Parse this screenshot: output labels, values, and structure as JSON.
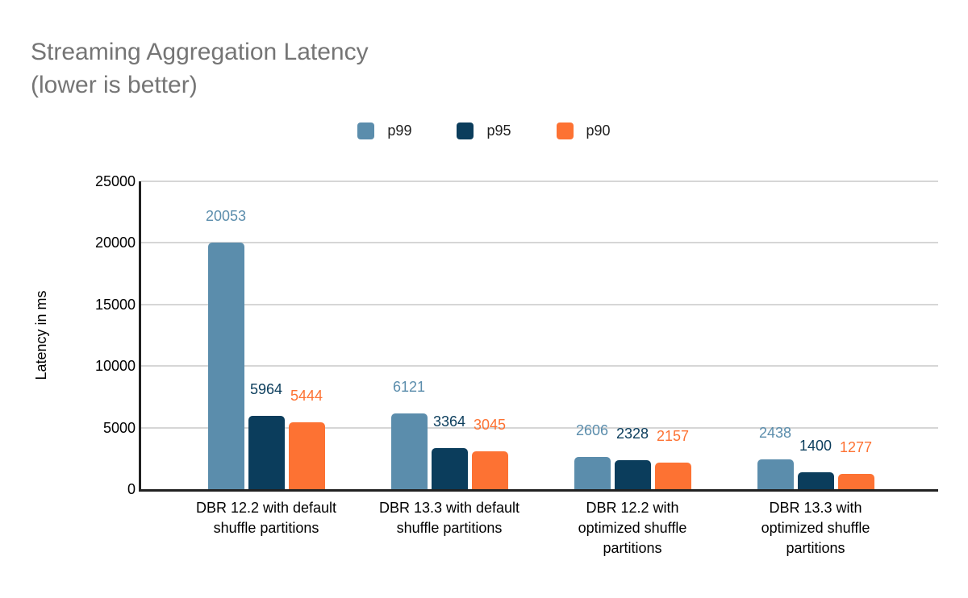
{
  "title": {
    "line1": "Streaming Aggregation Latency",
    "line2": "(lower is better)"
  },
  "colors": {
    "title_text": "#757575",
    "axis": "#212121",
    "gridline": "#d6d6d6",
    "tick_text": "#000000",
    "p99": "#5b8dac",
    "p95": "#0b3d5c",
    "p90": "#fd7233"
  },
  "chart_data": {
    "type": "bar",
    "title": "Streaming Aggregation Latency (lower is better)",
    "xlabel": "",
    "ylabel": "Latency in ms",
    "ylim": [
      0,
      25000
    ],
    "yticks": [
      0,
      5000,
      10000,
      15000,
      20000,
      25000
    ],
    "grid": true,
    "legend_position": "top-center",
    "value_labels": true,
    "categories": [
      "DBR 12.2 with default shuffle partitions",
      "DBR 13.3 with default shuffle partitions",
      "DBR 12.2 with optimized shuffle partitions",
      "DBR 13.3 with optimized shuffle partitions"
    ],
    "series": [
      {
        "name": "p99",
        "color": "#5b8dac",
        "values": [
          20053,
          6121,
          2606,
          2438
        ]
      },
      {
        "name": "p95",
        "color": "#0b3d5c",
        "values": [
          5964,
          3364,
          2328,
          1400
        ]
      },
      {
        "name": "p90",
        "color": "#fd7233",
        "values": [
          5444,
          3045,
          2157,
          1277
        ]
      }
    ]
  }
}
